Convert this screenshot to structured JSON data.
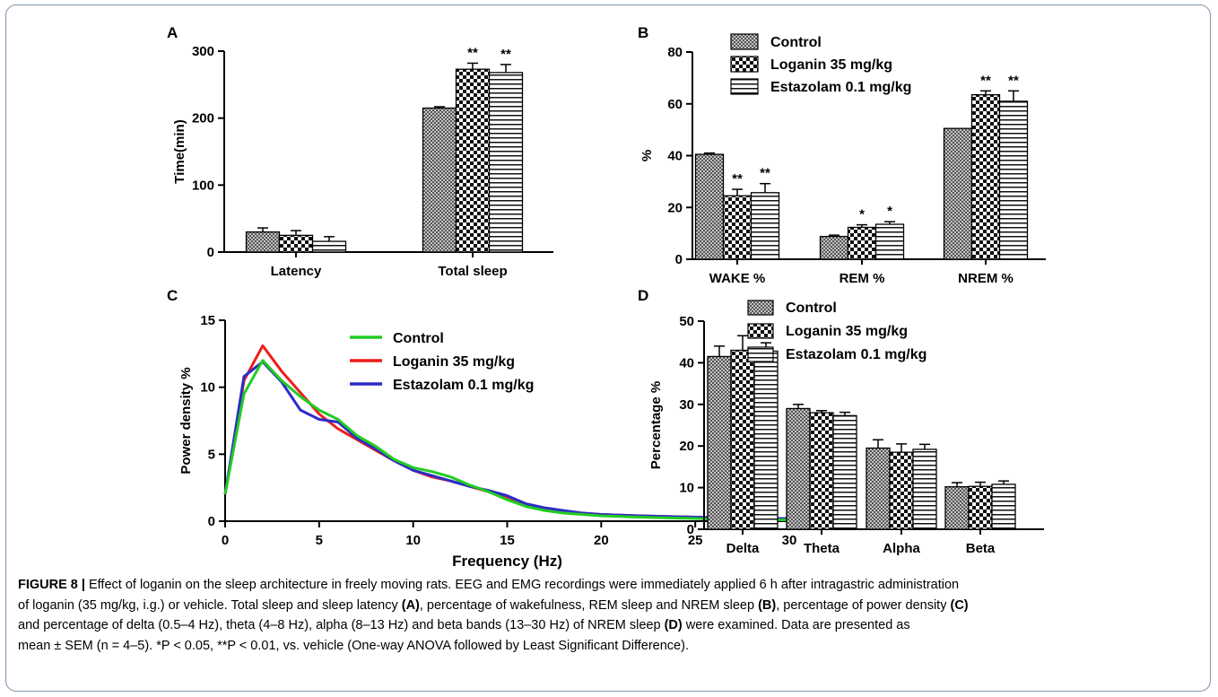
{
  "colors": {
    "frame": "#7f96b0",
    "control_line": "#22cc22",
    "loganin_line": "#ee1c1c",
    "estazolam_line": "#2c2cc8"
  },
  "panels": {
    "a": "A",
    "b": "B",
    "c": "C",
    "d": "D"
  },
  "chart_data": [
    {
      "id": "A",
      "type": "bar",
      "ylabel": "Time(min)",
      "ylim": [
        0,
        300
      ],
      "yticks": [
        0,
        100,
        200,
        300
      ],
      "categories": [
        "Latency",
        "Total sleep"
      ],
      "series": [
        {
          "name": "Control",
          "pattern": "check",
          "values": [
            30,
            215
          ],
          "errors": [
            6,
            2
          ],
          "sig": [
            "",
            ""
          ]
        },
        {
          "name": "Loganin 35 mg/kg",
          "pattern": "check-bold",
          "values": [
            25,
            273
          ],
          "errors": [
            7,
            9
          ],
          "sig": [
            "",
            "**"
          ]
        },
        {
          "name": "Estazolam 0.1 mg/kg",
          "pattern": "hstripe",
          "values": [
            16,
            268
          ],
          "errors": [
            7,
            12
          ],
          "sig": [
            "",
            "**"
          ]
        }
      ]
    },
    {
      "id": "B",
      "type": "bar",
      "ylabel": "%",
      "ylim": [
        0,
        80
      ],
      "yticks": [
        0,
        20,
        40,
        60,
        80
      ],
      "categories": [
        "WAKE %",
        "REM %",
        "NREM %"
      ],
      "legend": [
        "Control",
        "Loganin 35 mg/kg",
        "Estazolam 0.1 mg/kg"
      ],
      "series": [
        {
          "name": "Control",
          "pattern": "check",
          "values": [
            40.5,
            8.8,
            50.5
          ],
          "errors": [
            0.5,
            0.5,
            0
          ],
          "sig": [
            "",
            "",
            ""
          ]
        },
        {
          "name": "Loganin 35 mg/kg",
          "pattern": "check-bold",
          "values": [
            24.5,
            12.3,
            63.5
          ],
          "errors": [
            2.5,
            1,
            1.5
          ],
          "sig": [
            "**",
            "*",
            "**"
          ]
        },
        {
          "name": "Estazolam 0.1 mg/kg",
          "pattern": "hstripe",
          "values": [
            25.7,
            13.5,
            61
          ],
          "errors": [
            3.5,
            1,
            4
          ],
          "sig": [
            "**",
            "*",
            "**"
          ]
        }
      ]
    },
    {
      "id": "C",
      "type": "line",
      "xlabel": "Frequency (Hz)",
      "ylabel": "Power density %",
      "xlim": [
        0,
        30
      ],
      "ylim": [
        0,
        15
      ],
      "xticks": [
        0,
        5,
        10,
        15,
        20,
        25,
        30
      ],
      "yticks": [
        0,
        5,
        10,
        15
      ],
      "series": [
        {
          "name": "Control",
          "color": "#22cc22",
          "x": [
            0,
            1,
            2,
            3,
            4,
            5,
            6,
            7,
            8,
            9,
            10,
            11,
            12,
            13,
            14,
            15,
            16,
            17,
            18,
            19,
            20,
            22,
            25,
            28,
            30
          ],
          "y": [
            2,
            9.5,
            12.0,
            10.5,
            9.3,
            8.3,
            7.6,
            6.4,
            5.6,
            4.6,
            4.0,
            3.7,
            3.3,
            2.7,
            2.2,
            1.6,
            1.1,
            0.8,
            0.6,
            0.5,
            0.4,
            0.3,
            0.2,
            0.1,
            0.1
          ]
        },
        {
          "name": "Loganin 35 mg/kg",
          "color": "#ee1c1c",
          "x": [
            0,
            1,
            2,
            3,
            4,
            5,
            6,
            7,
            8,
            9,
            10,
            11,
            12,
            13,
            14,
            15,
            16,
            17,
            18,
            19,
            20,
            22,
            25,
            28,
            30
          ],
          "y": [
            2,
            10.5,
            13.1,
            11.2,
            9.6,
            8.0,
            6.9,
            6.1,
            5.3,
            4.5,
            3.8,
            3.3,
            3.0,
            2.6,
            2.2,
            1.7,
            1.2,
            0.9,
            0.7,
            0.6,
            0.5,
            0.4,
            0.3,
            0.2,
            0.2
          ]
        },
        {
          "name": "Estazolam 0.1 mg/kg",
          "color": "#2c2cc8",
          "x": [
            0,
            1,
            2,
            3,
            4,
            5,
            6,
            7,
            8,
            9,
            10,
            11,
            12,
            13,
            14,
            15,
            16,
            17,
            18,
            19,
            20,
            22,
            25,
            28,
            30
          ],
          "y": [
            2,
            10.8,
            11.9,
            10.4,
            8.3,
            7.6,
            7.4,
            6.2,
            5.4,
            4.5,
            3.8,
            3.4,
            3.0,
            2.6,
            2.3,
            1.9,
            1.3,
            1.0,
            0.8,
            0.6,
            0.5,
            0.4,
            0.3,
            0.2,
            0.2
          ]
        }
      ]
    },
    {
      "id": "D",
      "type": "bar",
      "ylabel": "Percentage %",
      "ylim": [
        0,
        50
      ],
      "yticks": [
        0,
        10,
        20,
        30,
        40,
        50
      ],
      "categories": [
        "Delta",
        "Theta",
        "Alpha",
        "Beta"
      ],
      "legend": [
        "Control",
        "Loganin 35 mg/kg",
        "Estazolam 0.1 mg/kg"
      ],
      "series": [
        {
          "name": "Control",
          "pattern": "check",
          "values": [
            41.5,
            29,
            19.5,
            10.2
          ],
          "errors": [
            2.5,
            1,
            2,
            1
          ],
          "sig": [
            "",
            "",
            "",
            ""
          ]
        },
        {
          "name": "Loganin 35 mg/kg",
          "pattern": "check-bold",
          "values": [
            43,
            28,
            18.5,
            10.3
          ],
          "errors": [
            3.5,
            0.5,
            2,
            1
          ],
          "sig": [
            "",
            "",
            "",
            ""
          ]
        },
        {
          "name": "Estazolam 0.1 mg/kg",
          "pattern": "hstripe",
          "values": [
            42.8,
            27.3,
            19.2,
            10.8
          ],
          "errors": [
            2,
            0.8,
            1.2,
            0.8
          ],
          "sig": [
            "",
            "",
            "",
            ""
          ]
        }
      ]
    }
  ],
  "caption": {
    "label": "FIGURE 8 |",
    "line1": " Effect of loganin on the sleep architecture in freely moving rats. EEG and EMG recordings were immediately applied 6 h after intragastric administration",
    "line2a": "of loganin (35 mg/kg, i.g.) or vehicle. Total sleep and sleep latency ",
    "ref_a": "(A)",
    "line2b": ", percentage of wakefulness, REM sleep and NREM sleep ",
    "ref_b": "(B)",
    "line2c": ", percentage of power density ",
    "ref_c": "(C)",
    "line3a": "and percentage of delta (0.5–4 Hz), theta (4–8 Hz), alpha (8–13 Hz) and beta bands (13–30 Hz) of NREM sleep ",
    "ref_d": "(D)",
    "line3b": " were examined. Data are presented as",
    "line4": "mean ± SEM (n = 4–5). *P < 0.05, **P < 0.01, vs. vehicle (One-way ANOVA followed by Least Significant Difference)."
  }
}
